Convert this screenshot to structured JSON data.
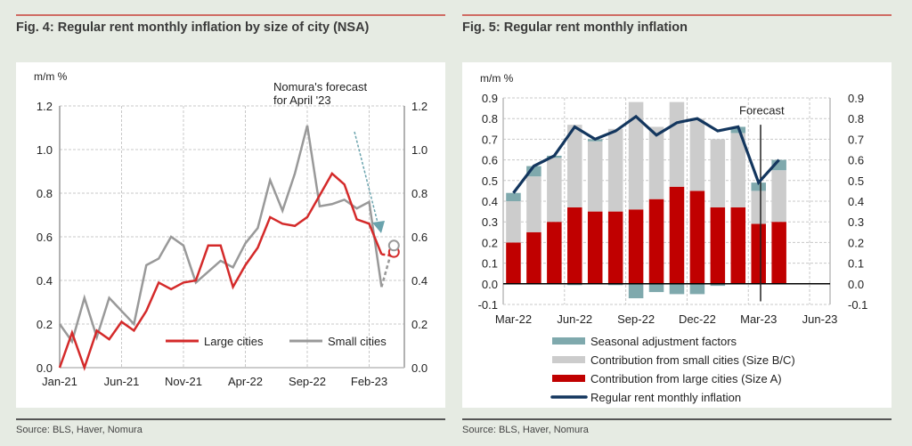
{
  "figures": [
    {
      "title": "Fig. 4: Regular rent monthly inflation by size of city (NSA)",
      "source": "Source: BLS, Haver, Nomura"
    },
    {
      "title": "Fig. 5: Regular rent monthly inflation",
      "source": "Source: BLS, Haver, Nomura"
    }
  ],
  "colors": {
    "large": "#d42a2a",
    "small": "#999999",
    "bar_large": "#c00000",
    "bar_small": "#cccccc",
    "bar_seasonal": "#7fa9ad",
    "line_total": "#13365e",
    "arrow": "#6aa3ad"
  },
  "chart_data": [
    {
      "type": "line",
      "title": "Fig. 4: Regular rent monthly inflation by size of city (NSA)",
      "ylabel": "m/m %",
      "ylim": [
        0.0,
        1.2
      ],
      "yticks": [
        "0.0",
        "0.2",
        "0.4",
        "0.6",
        "0.8",
        "1.0",
        "1.2"
      ],
      "ytick_values": [
        0.0,
        0.2,
        0.4,
        0.6,
        0.8,
        1.0,
        1.2
      ],
      "xticks": [
        "Jan-21",
        "Jun-21",
        "Nov-21",
        "Apr-22",
        "Sep-22",
        "Feb-23"
      ],
      "xtick_index": [
        0,
        5,
        10,
        15,
        20,
        25
      ],
      "x": [
        "Jan-21",
        "Feb-21",
        "Mar-21",
        "Apr-21",
        "May-21",
        "Jun-21",
        "Jul-21",
        "Aug-21",
        "Sep-21",
        "Oct-21",
        "Nov-21",
        "Dec-21",
        "Jan-22",
        "Feb-22",
        "Mar-22",
        "Apr-22",
        "May-22",
        "Jun-22",
        "Jul-22",
        "Aug-22",
        "Sep-22",
        "Oct-22",
        "Nov-22",
        "Dec-22",
        "Jan-23",
        "Feb-23",
        "Mar-23",
        "Apr-23"
      ],
      "grid": true,
      "legend_position": "bottom-right",
      "annotation": [
        "Nomura's forecast",
        "for April '23"
      ],
      "series": [
        {
          "name": "Large cities",
          "values": [
            0.0,
            0.16,
            0.0,
            0.17,
            0.13,
            0.21,
            0.17,
            0.26,
            0.39,
            0.36,
            0.39,
            0.4,
            0.56,
            0.56,
            0.37,
            0.47,
            0.55,
            0.69,
            0.66,
            0.65,
            0.69,
            0.79,
            0.89,
            0.84,
            0.68,
            0.66,
            0.52
          ],
          "forecast": {
            "x": "Apr-23",
            "value": 0.53
          }
        },
        {
          "name": "Small cities",
          "values": [
            0.2,
            0.12,
            0.32,
            0.14,
            0.32,
            0.26,
            0.2,
            0.47,
            0.5,
            0.6,
            0.56,
            0.39,
            0.44,
            0.49,
            0.46,
            0.57,
            0.64,
            0.86,
            0.72,
            0.89,
            1.11,
            0.74,
            0.75,
            0.77,
            0.73,
            0.76,
            0.37
          ],
          "forecast": {
            "x": "Apr-23",
            "value": 0.56
          }
        }
      ]
    },
    {
      "type": "bar",
      "stacked": true,
      "title": "Fig. 5: Regular rent monthly inflation",
      "ylabel": "m/m %",
      "ylim": [
        -0.1,
        0.9
      ],
      "yticks": [
        "-0.1",
        "0.0",
        "0.1",
        "0.2",
        "0.3",
        "0.4",
        "0.5",
        "0.6",
        "0.7",
        "0.8",
        "0.9"
      ],
      "ytick_values": [
        -0.1,
        0.0,
        0.1,
        0.2,
        0.3,
        0.4,
        0.5,
        0.6,
        0.7,
        0.8,
        0.9
      ],
      "xticks": [
        "Mar-22",
        "Jun-22",
        "Sep-22",
        "Dec-22",
        "Mar-23",
        "Jun-23"
      ],
      "xtick_index": [
        0,
        3,
        6,
        9,
        12,
        15
      ],
      "categories": [
        "Mar-22",
        "Apr-22",
        "May-22",
        "Jun-22",
        "Jul-22",
        "Aug-22",
        "Sep-22",
        "Oct-22",
        "Nov-22",
        "Dec-22",
        "Jan-23",
        "Feb-23",
        "Mar-23",
        "Apr-23"
      ],
      "n_slots": 16,
      "forecast_label": "Forecast",
      "forecast_start_index": 12.6,
      "grid": true,
      "legend_position": "bottom",
      "series": [
        {
          "name": "Seasonal adjustment factors",
          "kind": "bar",
          "values": [
            0.04,
            0.05,
            0.01,
            0.0,
            0.01,
            0.0,
            -0.07,
            -0.04,
            -0.05,
            -0.05,
            -0.01,
            0.03,
            0.04,
            0.05
          ]
        },
        {
          "name": "Contribution from small cities (Size B/C)",
          "kind": "bar",
          "values": [
            0.2,
            0.27,
            0.31,
            0.4,
            0.34,
            0.4,
            0.52,
            0.35,
            0.41,
            0.35,
            0.33,
            0.36,
            0.16,
            0.25
          ]
        },
        {
          "name": "Contribution from large cities (Size A)",
          "kind": "bar",
          "values": [
            0.2,
            0.25,
            0.3,
            0.37,
            0.35,
            0.35,
            0.36,
            0.41,
            0.47,
            0.45,
            0.37,
            0.37,
            0.29,
            0.3
          ]
        },
        {
          "name": "Regular rent monthly inflation",
          "kind": "line",
          "values": [
            0.44,
            0.57,
            0.62,
            0.76,
            0.7,
            0.74,
            0.81,
            0.72,
            0.78,
            0.8,
            0.74,
            0.76,
            0.49,
            0.6
          ]
        }
      ]
    }
  ]
}
